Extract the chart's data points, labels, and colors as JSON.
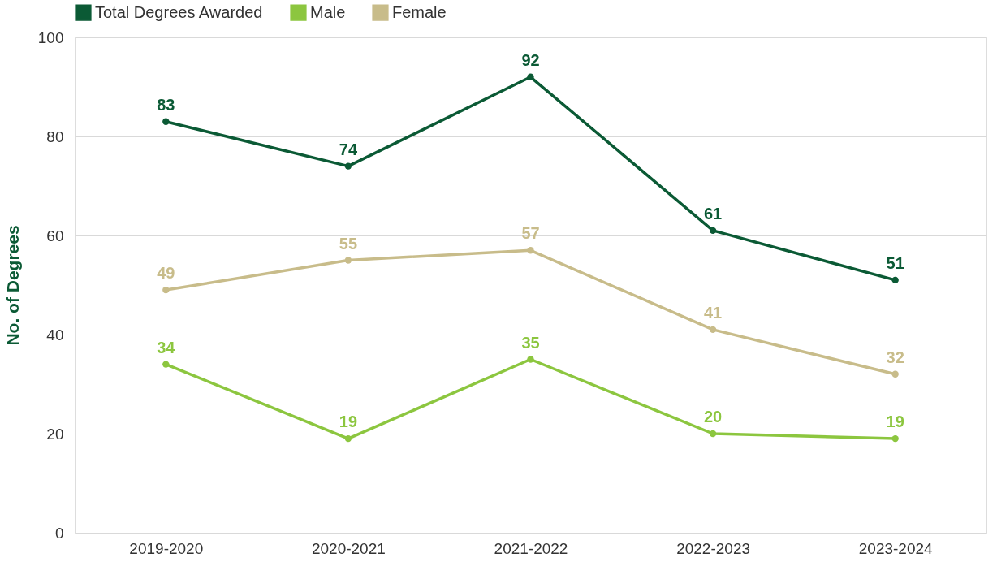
{
  "chart_data": {
    "type": "line",
    "ylabel": "No. of Degrees",
    "categories": [
      "2019-2020",
      "2020-2021",
      "2021-2022",
      "2022-2023",
      "2023-2024"
    ],
    "series": [
      {
        "name": "Total Degrees Awarded",
        "color": "#0b5a35",
        "values": [
          83,
          74,
          92,
          61,
          51
        ]
      },
      {
        "name": "Male",
        "color": "#8cc63f",
        "values": [
          34,
          19,
          35,
          20,
          19
        ]
      },
      {
        "name": "Female",
        "color": "#c8bc8a",
        "values": [
          49,
          55,
          57,
          41,
          32
        ]
      }
    ],
    "ylim": [
      0,
      100
    ],
    "yticks": [
      0,
      20,
      40,
      60,
      80,
      100
    ],
    "grid": "y",
    "legend": "top",
    "marker": "circle",
    "line_style": "solid",
    "data_labels": true
  }
}
